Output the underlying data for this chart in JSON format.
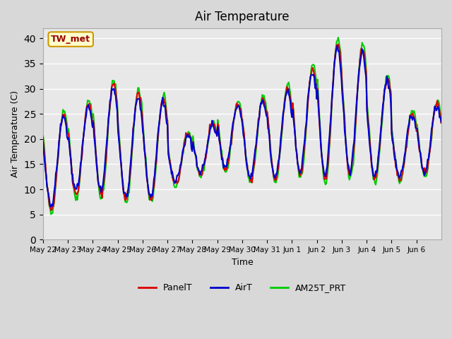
{
  "title": "Air Temperature",
  "xlabel": "Time",
  "ylabel": "Air Temperature (C)",
  "ylim": [
    0,
    42
  ],
  "yticks": [
    0,
    5,
    10,
    15,
    20,
    25,
    30,
    35,
    40
  ],
  "plot_bg_color": "#e8e8e8",
  "fig_bg_color": "#d8d8d8",
  "annotation_text": "TW_met",
  "annotation_bg": "#ffffcc",
  "annotation_border": "#cc9900",
  "annotation_text_color": "#990000",
  "legend_labels": [
    "PanelT",
    "AirT",
    "AM25T_PRT"
  ],
  "line_colors": [
    "#dd0000",
    "#0000cc",
    "#00cc00"
  ],
  "line_width": 1.5,
  "n_points": 500,
  "n_days": 16,
  "tick_dates": [
    "May 22",
    "May 23",
    "May 24",
    "May 25",
    "May 26",
    "May 27",
    "May 28",
    "May 29",
    "May 30",
    "May 31",
    "Jun 1",
    "Jun 2",
    "Jun 3",
    "Jun 4",
    "Jun 5",
    "Jun 6"
  ],
  "day_mins": [
    6,
    9,
    9,
    8,
    8,
    11,
    13,
    14,
    12,
    12,
    13,
    12,
    13,
    12,
    12,
    13
  ],
  "day_maxs": [
    25,
    27,
    31,
    29,
    28,
    21,
    23,
    27,
    28,
    30,
    34,
    39,
    38,
    32,
    25,
    27
  ]
}
